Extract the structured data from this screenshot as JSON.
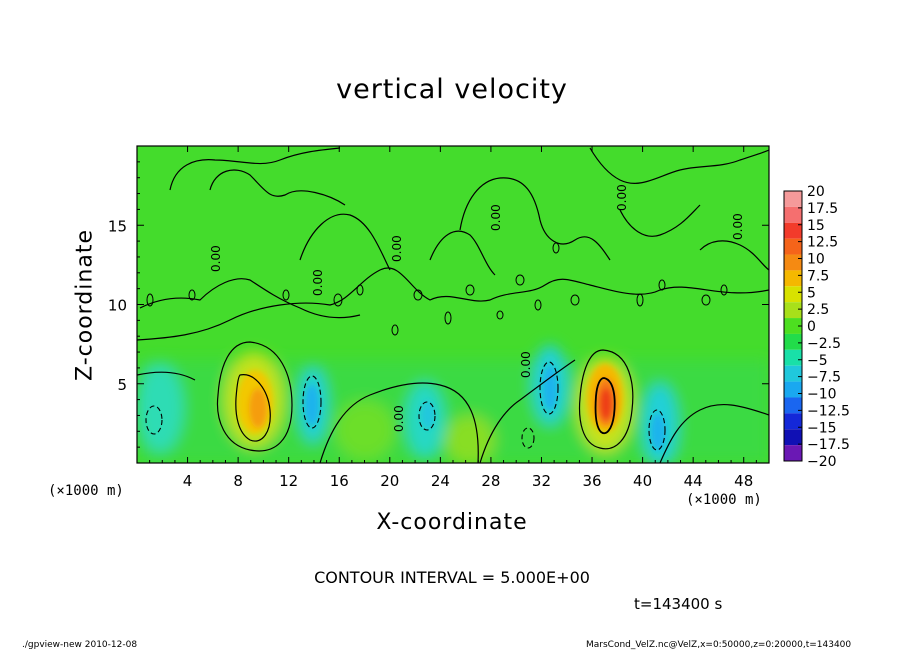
{
  "chart_data": {
    "type": "heatmap",
    "title": "vertical velocity",
    "xlabel": "X-coordinate",
    "ylabel": "Z-coordinate",
    "x_unit_label": "(×1000 m)",
    "y_unit_label": "(×1000 m)",
    "xlim": [
      0,
      50
    ],
    "ylim": [
      0,
      20
    ],
    "x_ticks": [
      4,
      8,
      12,
      16,
      20,
      24,
      28,
      32,
      36,
      40,
      44,
      48
    ],
    "y_ticks": [
      5,
      10,
      15
    ],
    "contour_interval_text": "CONTOUR INTERVAL = 5.000E+00",
    "contour_line_labels": [
      "0.00",
      "0.00",
      "0.00",
      "0.00",
      "0.00",
      "0.00",
      "0.00",
      "0.00"
    ],
    "time_text": "t=143400 s",
    "colorbar": {
      "labels": [
        "20",
        "17.5",
        "15",
        "12.5",
        "10",
        "7.5",
        "5",
        "2.5",
        "0",
        "-2.5",
        "-5",
        "-7.5",
        "-10",
        "-12.5",
        "-15",
        "-17.5",
        "-20"
      ],
      "colors": [
        "#f59a9a",
        "#f56f6f",
        "#f23b2b",
        "#f5641a",
        "#f58a12",
        "#f5b800",
        "#d8e200",
        "#a8e01a",
        "#4ddf20",
        "#22dc4a",
        "#19e0a8",
        "#20c8dc",
        "#1aa8f0",
        "#1a66f0",
        "#1428d8",
        "#1010b4",
        "#6a18b4"
      ]
    },
    "features": [
      {
        "kind": "updraft",
        "x": 9,
        "z": 4.0,
        "peak": 7.5
      },
      {
        "kind": "downdraft",
        "x": 13.8,
        "z": 4.0,
        "peak": -5
      },
      {
        "kind": "downdraft",
        "x": 23,
        "z": 3.0,
        "peak": -5
      },
      {
        "kind": "downdraft",
        "x": 31.5,
        "z": 5.0,
        "peak": -5
      },
      {
        "kind": "updraft",
        "x": 37.5,
        "z": 3.8,
        "peak": 12.5
      },
      {
        "kind": "downdraft",
        "x": 41.5,
        "z": 2.5,
        "peak": -5
      },
      {
        "kind": "downdraft",
        "x": 1.5,
        "z": 2.8,
        "peak": -5
      }
    ]
  },
  "footer": {
    "left": "./gpview-new 2010-12-08",
    "right": "MarsCond_VelZ.nc@VelZ,x=0:50000,z=0:20000,t=143400"
  }
}
